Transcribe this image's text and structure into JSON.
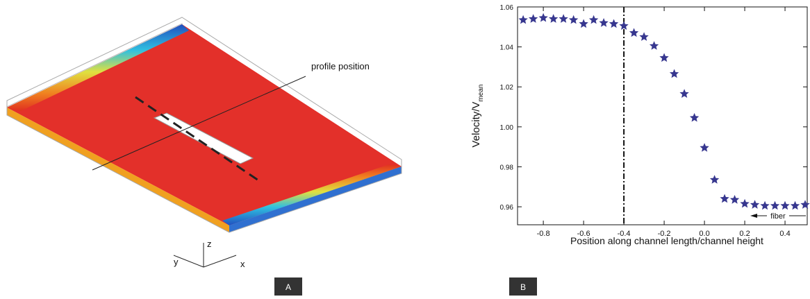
{
  "panel_a": {
    "annotation": "profile position",
    "axes": {
      "x": "x",
      "y": "y",
      "z": "z"
    },
    "label": "A"
  },
  "panel_b": {
    "label": "B"
  },
  "chart_data": {
    "type": "scatter",
    "marker": "star",
    "color": "#37378f",
    "xlabel": "Position along channel length/channel height",
    "ylabel": "Velocity/V",
    "ylabel_sub": "mean",
    "annotation": "fiber",
    "x": [
      -0.9,
      -0.85,
      -0.8,
      -0.75,
      -0.7,
      -0.65,
      -0.6,
      -0.55,
      -0.5,
      -0.45,
      -0.4,
      -0.35,
      -0.3,
      -0.25,
      -0.2,
      -0.15,
      -0.1,
      -0.05,
      0,
      0.05,
      0.1,
      0.15,
      0.2,
      0.25,
      0.3,
      0.35,
      0.4,
      0.45,
      0.5
    ],
    "values": [
      1.0535,
      1.054,
      1.0545,
      1.054,
      1.054,
      1.0535,
      1.0515,
      1.0535,
      1.052,
      1.0515,
      1.0505,
      1.047,
      1.045,
      1.0405,
      1.0345,
      1.0265,
      1.0165,
      1.0045,
      0.9895,
      0.9735,
      0.964,
      0.9635,
      0.9615,
      0.961,
      0.9605,
      0.9605,
      0.9605,
      0.9605,
      0.961
    ],
    "xlim": [
      -0.928,
      0.524
    ],
    "ylim": [
      0.951,
      1.06
    ],
    "xticks": [
      -0.8,
      -0.6,
      -0.4,
      -0.2,
      {
        "value": 0,
        "label": "0.0"
      },
      0.2,
      0.4
    ],
    "yticks": [
      0.96,
      0.98,
      {
        "value": 1,
        "label": "1.00"
      },
      1.02,
      1.04,
      1.06
    ],
    "vline": -0.4
  }
}
